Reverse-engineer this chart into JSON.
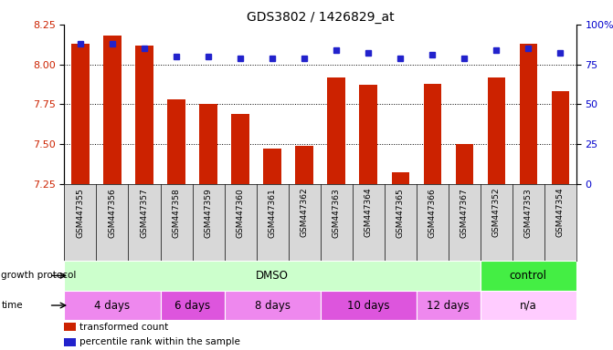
{
  "title": "GDS3802 / 1426829_at",
  "samples": [
    "GSM447355",
    "GSM447356",
    "GSM447357",
    "GSM447358",
    "GSM447359",
    "GSM447360",
    "GSM447361",
    "GSM447362",
    "GSM447363",
    "GSM447364",
    "GSM447365",
    "GSM447366",
    "GSM447367",
    "GSM447352",
    "GSM447353",
    "GSM447354"
  ],
  "red_values": [
    8.13,
    8.18,
    8.12,
    7.78,
    7.75,
    7.69,
    7.47,
    7.49,
    7.92,
    7.87,
    7.32,
    7.88,
    7.5,
    7.92,
    8.13,
    7.83
  ],
  "blue_values": [
    88,
    88,
    85,
    80,
    80,
    79,
    79,
    79,
    84,
    82,
    79,
    81,
    79,
    84,
    85,
    82
  ],
  "ylim_left": [
    7.25,
    8.25
  ],
  "ylim_right": [
    0,
    100
  ],
  "yticks_left": [
    7.25,
    7.5,
    7.75,
    8.0,
    8.25
  ],
  "yticks_right": [
    0,
    25,
    50,
    75,
    100
  ],
  "gridlines": [
    7.5,
    7.75,
    8.0
  ],
  "bar_color": "#cc2200",
  "dot_color": "#2222cc",
  "bar_bottom": 7.25,
  "groups_gp": [
    {
      "label": "DMSO",
      "start": 0,
      "end": 13,
      "color": "#ccffcc"
    },
    {
      "label": "control",
      "start": 13,
      "end": 16,
      "color": "#44ee44"
    }
  ],
  "groups_time": [
    {
      "label": "4 days",
      "start": 0,
      "end": 3,
      "color": "#ee88ee"
    },
    {
      "label": "6 days",
      "start": 3,
      "end": 5,
      "color": "#dd55dd"
    },
    {
      "label": "8 days",
      "start": 5,
      "end": 8,
      "color": "#ee88ee"
    },
    {
      "label": "10 days",
      "start": 8,
      "end": 11,
      "color": "#dd55dd"
    },
    {
      "label": "12 days",
      "start": 11,
      "end": 13,
      "color": "#ee88ee"
    },
    {
      "label": "n/a",
      "start": 13,
      "end": 16,
      "color": "#ffccff"
    }
  ],
  "legend": [
    {
      "label": "transformed count",
      "color": "#cc2200"
    },
    {
      "label": "percentile rank within the sample",
      "color": "#2222cc"
    }
  ],
  "left_label_color": "#cc2200",
  "right_label_color": "#0000cc",
  "n_samples": 16,
  "label_area_facecolor": "#d8d8d8"
}
